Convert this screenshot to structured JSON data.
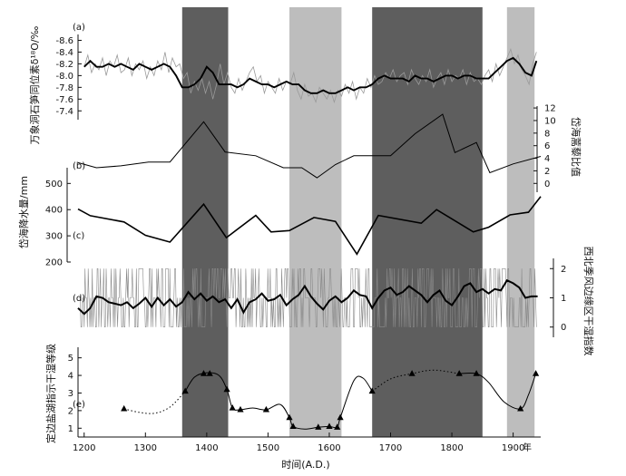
{
  "chart_data": {
    "type": "line",
    "x_axis": {
      "label": "时间(A.D.)",
      "unit_label": "年",
      "range": [
        1190,
        1945
      ],
      "ticks": [
        1200,
        1300,
        1400,
        1500,
        1600,
        1700,
        1800,
        1900
      ]
    },
    "bands": [
      {
        "start": 1360,
        "end": 1435,
        "color": "#5e5e5e"
      },
      {
        "start": 1535,
        "end": 1620,
        "color": "#bdbdbd"
      },
      {
        "start": 1670,
        "end": 1850,
        "color": "#5e5e5e"
      },
      {
        "start": 1890,
        "end": 1935,
        "color": "#bdbdbd"
      }
    ],
    "panels": {
      "a": {
        "tag": "(a)",
        "ylabel": "万象洞石笋同位素δ¹⁸O/‰",
        "inverted": true,
        "ylim": [
          -8.7,
          -7.25
        ],
        "ticks": [
          -8.6,
          -8.4,
          -8.2,
          -8.0,
          -7.8,
          -7.6,
          -7.4
        ],
        "tick_labels": [
          "-8.6",
          "-8.4",
          "-8.2",
          "-8.0",
          "-7.8",
          "-7.6",
          "-7.4"
        ],
        "series": [
          {
            "role": "raw",
            "x": [
              1200,
              1206,
              1212,
              1218,
              1224,
              1230,
              1236,
              1242,
              1248,
              1254,
              1260,
              1266,
              1272,
              1278,
              1284,
              1290,
              1296,
              1302,
              1308,
              1314,
              1320,
              1326,
              1332,
              1338,
              1344,
              1350,
              1356,
              1362,
              1368,
              1374,
              1380,
              1386,
              1392,
              1398,
              1404,
              1410,
              1416,
              1422,
              1428,
              1434,
              1440,
              1446,
              1452,
              1458,
              1464,
              1470,
              1476,
              1482,
              1488,
              1494,
              1500,
              1506,
              1512,
              1518,
              1524,
              1530,
              1536,
              1542,
              1548,
              1554,
              1560,
              1566,
              1572,
              1578,
              1584,
              1590,
              1596,
              1602,
              1608,
              1614,
              1620,
              1626,
              1632,
              1638,
              1644,
              1650,
              1656,
              1662,
              1668,
              1674,
              1680,
              1686,
              1692,
              1698,
              1704,
              1710,
              1716,
              1722,
              1728,
              1734,
              1740,
              1746,
              1752,
              1758,
              1764,
              1770,
              1776,
              1782,
              1788,
              1794,
              1800,
              1806,
              1812,
              1818,
              1824,
              1830,
              1836,
              1842,
              1848,
              1854,
              1860,
              1866,
              1872,
              1878,
              1884,
              1890,
              1896,
              1902,
              1908,
              1914,
              1920,
              1926,
              1932,
              1938
            ],
            "y": [
              -8.15,
              -8.35,
              -8.05,
              -8.2,
              -8.1,
              -8.3,
              -8.0,
              -8.25,
              -8.15,
              -8.35,
              -8.05,
              -8.1,
              -8.3,
              -8.0,
              -8.2,
              -8.1,
              -8.25,
              -7.95,
              -8.15,
              -8.0,
              -8.25,
              -8.1,
              -8.4,
              -8.05,
              -8.3,
              -8.15,
              -8.2,
              -7.95,
              -8.05,
              -7.7,
              -7.9,
              -7.75,
              -7.95,
              -7.7,
              -7.9,
              -7.6,
              -7.85,
              -8.2,
              -7.85,
              -8.05,
              -7.8,
              -7.7,
              -7.95,
              -7.75,
              -7.9,
              -8.05,
              -8.15,
              -7.9,
              -8.0,
              -7.7,
              -7.9,
              -7.8,
              -7.7,
              -7.95,
              -7.75,
              -7.9,
              -7.85,
              -8.05,
              -7.75,
              -7.6,
              -7.85,
              -7.65,
              -7.7,
              -7.55,
              -7.8,
              -7.7,
              -7.6,
              -7.75,
              -7.55,
              -7.75,
              -7.65,
              -7.85,
              -7.7,
              -7.9,
              -7.6,
              -7.8,
              -7.7,
              -7.95,
              -7.8,
              -8.0,
              -7.85,
              -7.9,
              -8.05,
              -7.95,
              -8.1,
              -7.9,
              -8.0,
              -8.05,
              -7.85,
              -8.1,
              -7.95,
              -7.85,
              -8.0,
              -7.9,
              -8.1,
              -7.8,
              -7.95,
              -8.05,
              -7.85,
              -8.1,
              -7.9,
              -8.0,
              -7.95,
              -8.1,
              -7.85,
              -8.05,
              -7.9,
              -7.95,
              -7.85,
              -8.0,
              -8.1,
              -7.9,
              -8.2,
              -8.0,
              -8.15,
              -8.3,
              -8.45,
              -8.2,
              -8.35,
              -8.1,
              -8.0,
              -7.85,
              -8.2,
              -8.4
            ]
          },
          {
            "role": "smoothed",
            "x": [
              1200,
              1210,
              1220,
              1230,
              1240,
              1250,
              1260,
              1270,
              1280,
              1290,
              1300,
              1310,
              1320,
              1330,
              1340,
              1350,
              1360,
              1370,
              1380,
              1390,
              1400,
              1410,
              1420,
              1430,
              1440,
              1450,
              1460,
              1470,
              1480,
              1490,
              1500,
              1510,
              1520,
              1530,
              1540,
              1550,
              1560,
              1570,
              1580,
              1590,
              1600,
              1610,
              1620,
              1630,
              1640,
              1650,
              1660,
              1670,
              1680,
              1690,
              1700,
              1710,
              1720,
              1730,
              1740,
              1750,
              1760,
              1770,
              1780,
              1790,
              1800,
              1810,
              1820,
              1830,
              1840,
              1850,
              1860,
              1870,
              1880,
              1890,
              1900,
              1910,
              1920,
              1930,
              1938
            ],
            "y": [
              -8.15,
              -8.25,
              -8.15,
              -8.15,
              -8.2,
              -8.15,
              -8.2,
              -8.15,
              -8.1,
              -8.2,
              -8.15,
              -8.1,
              -8.15,
              -8.2,
              -8.15,
              -8.0,
              -7.8,
              -7.8,
              -7.85,
              -7.95,
              -8.15,
              -8.05,
              -7.85,
              -7.85,
              -7.85,
              -7.8,
              -7.85,
              -7.95,
              -7.9,
              -7.85,
              -7.85,
              -7.8,
              -7.85,
              -7.9,
              -7.85,
              -7.85,
              -7.75,
              -7.7,
              -7.7,
              -7.75,
              -7.7,
              -7.7,
              -7.75,
              -7.8,
              -7.75,
              -7.8,
              -7.8,
              -7.85,
              -7.95,
              -8.0,
              -7.95,
              -7.95,
              -7.95,
              -7.9,
              -8.0,
              -7.95,
              -7.95,
              -7.9,
              -7.95,
              -8.0,
              -8.0,
              -7.95,
              -8.0,
              -8.0,
              -7.95,
              -7.95,
              -7.95,
              -8.05,
              -8.15,
              -8.25,
              -8.3,
              -8.2,
              -8.05,
              -8.0,
              -8.25
            ]
          }
        ]
      },
      "b": {
        "tag": "(b)",
        "ylabel": "岱海蒿藜比值",
        "ylim": [
          -1.4,
          12.3
        ],
        "ticks": [
          0,
          2,
          4,
          6,
          8,
          10,
          12
        ],
        "tick_labels": [
          "0",
          "2",
          "4",
          "6",
          "8",
          "10",
          "12"
        ],
        "series": [
          {
            "x": [
              1190,
              1220,
              1260,
              1305,
              1340,
              1395,
              1430,
              1480,
              1525,
              1555,
              1580,
              1610,
              1640,
              1700,
              1740,
              1785,
              1805,
              1840,
              1862,
              1900,
              1945
            ],
            "y": [
              3.3,
              2.5,
              2.8,
              3.4,
              3.4,
              9.8,
              5.0,
              4.4,
              2.5,
              2.5,
              0.9,
              3.0,
              4.4,
              4.4,
              7.9,
              11.0,
              4.9,
              6.5,
              1.7,
              3.1,
              4.3
            ]
          }
        ]
      },
      "c": {
        "tag": "(c)",
        "ylabel": "岱海降水量/mm",
        "ylim": [
          200,
          560
        ],
        "ticks": [
          200,
          300,
          400,
          500
        ],
        "tick_labels": [
          "200",
          "300",
          "400",
          "500"
        ],
        "series": [
          {
            "x": [
              1190,
              1210,
              1265,
              1300,
              1340,
              1395,
              1432,
              1480,
              1505,
              1535,
              1575,
              1610,
              1645,
              1680,
              1750,
              1775,
              1835,
              1860,
              1895,
              1925,
              1945
            ],
            "y": [
              402,
              377,
              353,
              302,
              276,
              421,
              293,
              378,
              315,
              320,
              370,
              355,
              230,
              378,
              348,
              400,
              315,
              333,
              380,
              390,
              450
            ]
          }
        ]
      },
      "d": {
        "tag": "(d)",
        "ylabel": "西北季风边缘区干湿指数",
        "ylim": [
          -0.35,
          2.35
        ],
        "ticks": [
          0,
          1,
          2
        ],
        "tick_labels": [
          "0",
          "1",
          "2"
        ],
        "series": [
          {
            "role": "smoothed",
            "x": [
              1190,
              1200,
              1210,
              1220,
              1230,
              1240,
              1250,
              1260,
              1270,
              1280,
              1290,
              1300,
              1310,
              1320,
              1330,
              1340,
              1350,
              1360,
              1370,
              1380,
              1390,
              1400,
              1410,
              1420,
              1430,
              1440,
              1450,
              1460,
              1470,
              1480,
              1490,
              1500,
              1510,
              1520,
              1530,
              1540,
              1550,
              1560,
              1570,
              1580,
              1590,
              1600,
              1610,
              1620,
              1630,
              1640,
              1650,
              1660,
              1670,
              1680,
              1690,
              1700,
              1710,
              1720,
              1730,
              1740,
              1750,
              1760,
              1770,
              1780,
              1790,
              1800,
              1810,
              1820,
              1830,
              1840,
              1850,
              1860,
              1870,
              1880,
              1890,
              1900,
              1910,
              1920,
              1930,
              1940
            ],
            "y": [
              0.65,
              0.45,
              0.65,
              1.05,
              1.0,
              0.85,
              0.8,
              0.75,
              0.85,
              0.65,
              0.8,
              1.0,
              0.7,
              1.0,
              0.75,
              0.95,
              0.7,
              0.85,
              1.2,
              0.95,
              1.15,
              0.9,
              1.05,
              0.85,
              0.95,
              0.65,
              0.95,
              0.5,
              0.85,
              0.95,
              1.15,
              0.9,
              0.95,
              1.1,
              0.75,
              0.95,
              1.1,
              1.4,
              1.05,
              0.8,
              0.6,
              0.9,
              1.05,
              0.85,
              1.0,
              1.25,
              1.1,
              1.05,
              0.65,
              1.0,
              1.25,
              1.35,
              1.1,
              1.2,
              1.4,
              1.25,
              1.1,
              0.85,
              1.1,
              1.25,
              0.9,
              0.75,
              1.05,
              1.4,
              1.5,
              1.2,
              1.3,
              1.15,
              1.3,
              1.25,
              1.6,
              1.5,
              1.35,
              1.0,
              1.05,
              1.05
            ]
          }
        ]
      },
      "e": {
        "tag": "(e)",
        "ylabel": "定边盐湖指示干湿等级",
        "ylim": [
          0.5,
          5.6
        ],
        "ticks": [
          1,
          2,
          3,
          4,
          5
        ],
        "tick_labels": [
          "1",
          "2",
          "3",
          "4",
          "5"
        ],
        "series": [
          {
            "role": "observed",
            "x": [
              1265,
              1365,
              1395,
              1405,
              1433,
              1442,
              1455,
              1497,
              1535,
              1541,
              1582,
              1600,
              1613,
              1618,
              1670,
              1735,
              1812,
              1840,
              1912,
              1937
            ],
            "y": [
              2.1,
              3.1,
              4.1,
              4.1,
              3.2,
              2.15,
              2.05,
              2.05,
              1.6,
              1.1,
              1.05,
              1.1,
              1.05,
              1.6,
              3.1,
              4.1,
              4.1,
              4.1,
              2.1,
              4.1
            ]
          },
          {
            "role": "interpolated",
            "x": [
              1265,
              1290,
              1315,
              1340,
              1365
            ],
            "y": [
              2.1,
              1.9,
              1.85,
              2.2,
              3.1
            ]
          },
          {
            "role": "interpolated",
            "x": [
              1670,
              1700,
              1735,
              1770,
              1812
            ],
            "y": [
              3.1,
              3.8,
              4.1,
              4.3,
              4.1
            ]
          }
        ]
      }
    }
  }
}
